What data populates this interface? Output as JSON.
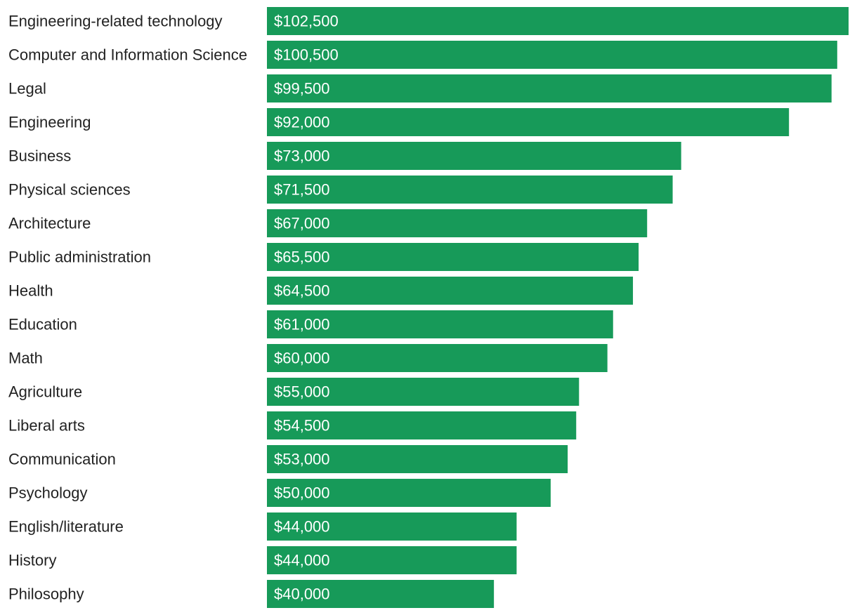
{
  "colors": {
    "bar": "#179a59",
    "label": "#222222",
    "value_text": "#ffffff",
    "background": "#ffffff"
  },
  "chart_data": {
    "type": "bar",
    "orientation": "horizontal",
    "title": "",
    "xlabel": "",
    "ylabel": "",
    "grid": false,
    "categories": [
      "Engineering-related technology",
      "Computer and Information Science",
      "Legal",
      "Engineering",
      "Business",
      "Physical sciences",
      "Architecture",
      "Public administration",
      "Health",
      "Education",
      "Math",
      "Agriculture",
      "Liberal arts",
      "Communication",
      "Psychology",
      "English/literature",
      "History",
      "Philosophy"
    ],
    "values": [
      102500,
      100500,
      99500,
      92000,
      73000,
      71500,
      67000,
      65500,
      64500,
      61000,
      60000,
      55000,
      54500,
      53000,
      50000,
      44000,
      44000,
      40000
    ],
    "value_labels": [
      "$102,500",
      "$100,500",
      "$99,500",
      "$92,000",
      "$73,000",
      "$71,500",
      "$67,000",
      "$65,500",
      "$64,500",
      "$61,000",
      "$60,000",
      "$55,000",
      "$54,500",
      "$53,000",
      "$50,000",
      "$44,000",
      "$44,000",
      "$40,000"
    ],
    "xlim": [
      0,
      102500
    ]
  }
}
